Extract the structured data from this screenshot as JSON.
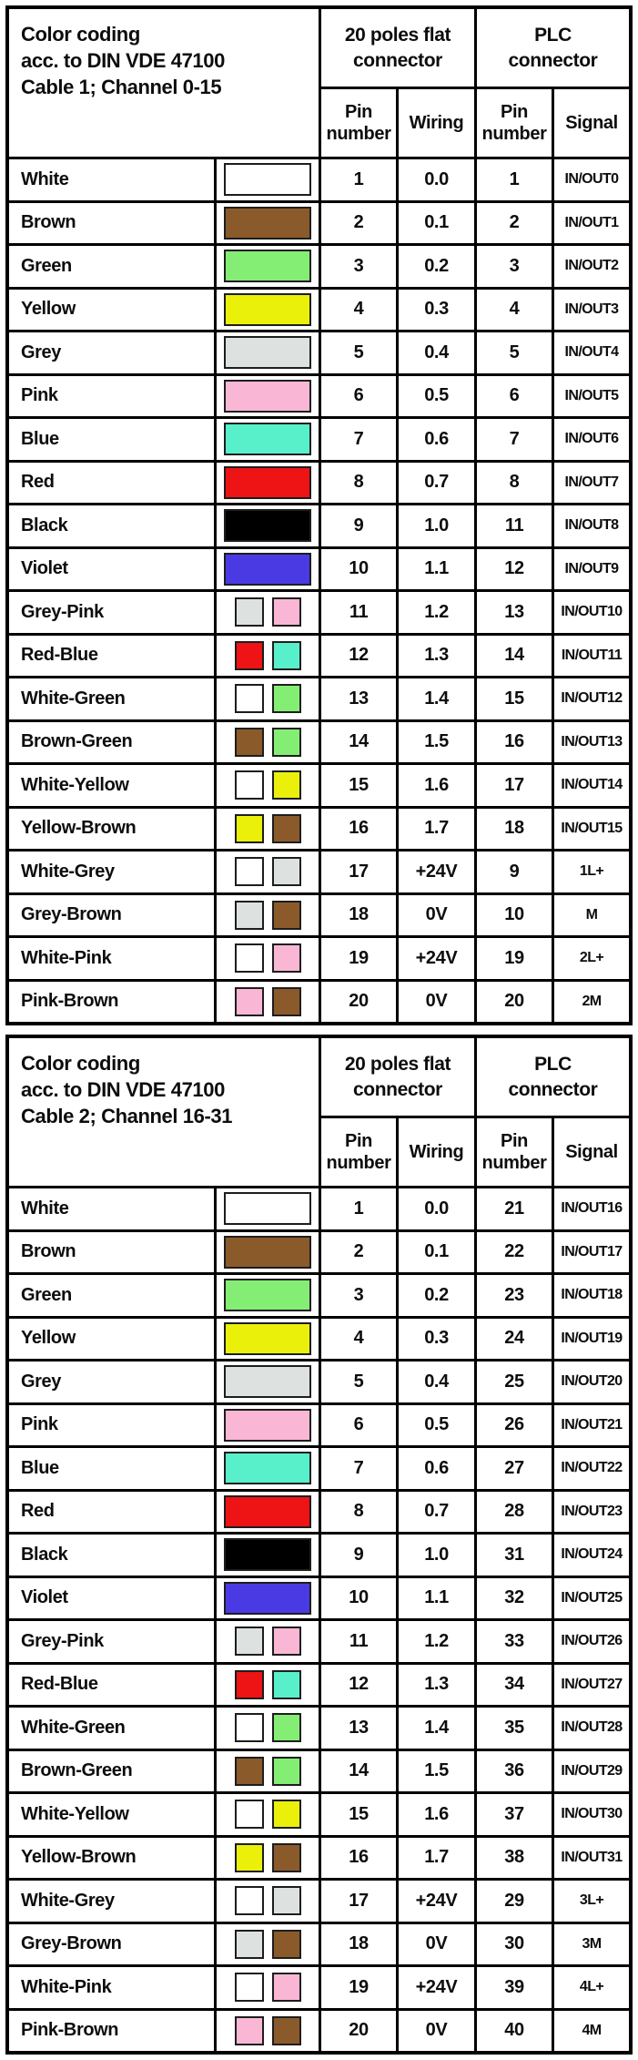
{
  "colors": {
    "white": "#ffffff",
    "brown": "#8b5a2b",
    "green": "#84ee74",
    "yellow": "#eaf00a",
    "grey": "#dde2e0",
    "pink": "#f9b7d5",
    "blue": "#57f0cb",
    "red": "#ee1314",
    "black": "#000000",
    "violet": "#4a3ae3"
  },
  "tables": [
    {
      "title_lines": [
        "Color coding",
        "acc. to DIN VDE 47100",
        "Cable 1; Channel 0-15"
      ],
      "group_headers": [
        "20 poles flat\nconnector",
        "PLC\nconnector"
      ],
      "col_headers": [
        "Pin\nnumber",
        "Wiring",
        "Pin\nnumber",
        "Signal"
      ],
      "rows": [
        {
          "name": "White",
          "swatches": [
            "white"
          ],
          "pin": "1",
          "wiring": "0.0",
          "plc_pin": "1",
          "signal": "IN/OUT0"
        },
        {
          "name": "Brown",
          "swatches": [
            "brown"
          ],
          "pin": "2",
          "wiring": "0.1",
          "plc_pin": "2",
          "signal": "IN/OUT1"
        },
        {
          "name": "Green",
          "swatches": [
            "green"
          ],
          "pin": "3",
          "wiring": "0.2",
          "plc_pin": "3",
          "signal": "IN/OUT2"
        },
        {
          "name": "Yellow",
          "swatches": [
            "yellow"
          ],
          "pin": "4",
          "wiring": "0.3",
          "plc_pin": "4",
          "signal": "IN/OUT3"
        },
        {
          "name": "Grey",
          "swatches": [
            "grey"
          ],
          "pin": "5",
          "wiring": "0.4",
          "plc_pin": "5",
          "signal": "IN/OUT4"
        },
        {
          "name": "Pink",
          "swatches": [
            "pink"
          ],
          "pin": "6",
          "wiring": "0.5",
          "plc_pin": "6",
          "signal": "IN/OUT5"
        },
        {
          "name": "Blue",
          "swatches": [
            "blue"
          ],
          "pin": "7",
          "wiring": "0.6",
          "plc_pin": "7",
          "signal": "IN/OUT6"
        },
        {
          "name": "Red",
          "swatches": [
            "red"
          ],
          "pin": "8",
          "wiring": "0.7",
          "plc_pin": "8",
          "signal": "IN/OUT7"
        },
        {
          "name": "Black",
          "swatches": [
            "black"
          ],
          "pin": "9",
          "wiring": "1.0",
          "plc_pin": "11",
          "signal": "IN/OUT8"
        },
        {
          "name": "Violet",
          "swatches": [
            "violet"
          ],
          "pin": "10",
          "wiring": "1.1",
          "plc_pin": "12",
          "signal": "IN/OUT9"
        },
        {
          "name": "Grey-Pink",
          "swatches": [
            "grey",
            "pink"
          ],
          "pin": "11",
          "wiring": "1.2",
          "plc_pin": "13",
          "signal": "IN/OUT10"
        },
        {
          "name": "Red-Blue",
          "swatches": [
            "red",
            "blue"
          ],
          "pin": "12",
          "wiring": "1.3",
          "plc_pin": "14",
          "signal": "IN/OUT11"
        },
        {
          "name": "White-Green",
          "swatches": [
            "white",
            "green"
          ],
          "pin": "13",
          "wiring": "1.4",
          "plc_pin": "15",
          "signal": "IN/OUT12"
        },
        {
          "name": "Brown-Green",
          "swatches": [
            "brown",
            "green"
          ],
          "pin": "14",
          "wiring": "1.5",
          "plc_pin": "16",
          "signal": "IN/OUT13"
        },
        {
          "name": "White-Yellow",
          "swatches": [
            "white",
            "yellow"
          ],
          "pin": "15",
          "wiring": "1.6",
          "plc_pin": "17",
          "signal": "IN/OUT14"
        },
        {
          "name": "Yellow-Brown",
          "swatches": [
            "yellow",
            "brown"
          ],
          "pin": "16",
          "wiring": "1.7",
          "plc_pin": "18",
          "signal": "IN/OUT15"
        },
        {
          "name": "White-Grey",
          "swatches": [
            "white",
            "grey"
          ],
          "pin": "17",
          "wiring": "+24V",
          "plc_pin": "9",
          "signal": "1L+"
        },
        {
          "name": "Grey-Brown",
          "swatches": [
            "grey",
            "brown"
          ],
          "pin": "18",
          "wiring": "0V",
          "plc_pin": "10",
          "signal": "M"
        },
        {
          "name": "White-Pink",
          "swatches": [
            "white",
            "pink"
          ],
          "pin": "19",
          "wiring": "+24V",
          "plc_pin": "19",
          "signal": "2L+"
        },
        {
          "name": "Pink-Brown",
          "swatches": [
            "pink",
            "brown"
          ],
          "pin": "20",
          "wiring": "0V",
          "plc_pin": "20",
          "signal": "2M"
        }
      ]
    },
    {
      "title_lines": [
        "Color coding",
        "acc. to DIN VDE 47100",
        "Cable 2; Channel 16-31"
      ],
      "group_headers": [
        "20 poles flat\nconnector",
        "PLC\nconnector"
      ],
      "col_headers": [
        "Pin\nnumber",
        "Wiring",
        "Pin\nnumber",
        "Signal"
      ],
      "rows": [
        {
          "name": "White",
          "swatches": [
            "white"
          ],
          "pin": "1",
          "wiring": "0.0",
          "plc_pin": "21",
          "signal": "IN/OUT16"
        },
        {
          "name": "Brown",
          "swatches": [
            "brown"
          ],
          "pin": "2",
          "wiring": "0.1",
          "plc_pin": "22",
          "signal": "IN/OUT17"
        },
        {
          "name": "Green",
          "swatches": [
            "green"
          ],
          "pin": "3",
          "wiring": "0.2",
          "plc_pin": "23",
          "signal": "IN/OUT18"
        },
        {
          "name": "Yellow",
          "swatches": [
            "yellow"
          ],
          "pin": "4",
          "wiring": "0.3",
          "plc_pin": "24",
          "signal": "IN/OUT19"
        },
        {
          "name": "Grey",
          "swatches": [
            "grey"
          ],
          "pin": "5",
          "wiring": "0.4",
          "plc_pin": "25",
          "signal": "IN/OUT20"
        },
        {
          "name": "Pink",
          "swatches": [
            "pink"
          ],
          "pin": "6",
          "wiring": "0.5",
          "plc_pin": "26",
          "signal": "IN/OUT21"
        },
        {
          "name": "Blue",
          "swatches": [
            "blue"
          ],
          "pin": "7",
          "wiring": "0.6",
          "plc_pin": "27",
          "signal": "IN/OUT22"
        },
        {
          "name": "Red",
          "swatches": [
            "red"
          ],
          "pin": "8",
          "wiring": "0.7",
          "plc_pin": "28",
          "signal": "IN/OUT23"
        },
        {
          "name": "Black",
          "swatches": [
            "black"
          ],
          "pin": "9",
          "wiring": "1.0",
          "plc_pin": "31",
          "signal": "IN/OUT24"
        },
        {
          "name": "Violet",
          "swatches": [
            "violet"
          ],
          "pin": "10",
          "wiring": "1.1",
          "plc_pin": "32",
          "signal": "IN/OUT25"
        },
        {
          "name": "Grey-Pink",
          "swatches": [
            "grey",
            "pink"
          ],
          "pin": "11",
          "wiring": "1.2",
          "plc_pin": "33",
          "signal": "IN/OUT26"
        },
        {
          "name": "Red-Blue",
          "swatches": [
            "red",
            "blue"
          ],
          "pin": "12",
          "wiring": "1.3",
          "plc_pin": "34",
          "signal": "IN/OUT27"
        },
        {
          "name": "White-Green",
          "swatches": [
            "white",
            "green"
          ],
          "pin": "13",
          "wiring": "1.4",
          "plc_pin": "35",
          "signal": "IN/OUT28"
        },
        {
          "name": "Brown-Green",
          "swatches": [
            "brown",
            "green"
          ],
          "pin": "14",
          "wiring": "1.5",
          "plc_pin": "36",
          "signal": "IN/OUT29"
        },
        {
          "name": "White-Yellow",
          "swatches": [
            "white",
            "yellow"
          ],
          "pin": "15",
          "wiring": "1.6",
          "plc_pin": "37",
          "signal": "IN/OUT30"
        },
        {
          "name": "Yellow-Brown",
          "swatches": [
            "yellow",
            "brown"
          ],
          "pin": "16",
          "wiring": "1.7",
          "plc_pin": "38",
          "signal": "IN/OUT31"
        },
        {
          "name": "White-Grey",
          "swatches": [
            "white",
            "grey"
          ],
          "pin": "17",
          "wiring": "+24V",
          "plc_pin": "29",
          "signal": "3L+"
        },
        {
          "name": "Grey-Brown",
          "swatches": [
            "grey",
            "brown"
          ],
          "pin": "18",
          "wiring": "0V",
          "plc_pin": "30",
          "signal": "3M"
        },
        {
          "name": "White-Pink",
          "swatches": [
            "white",
            "pink"
          ],
          "pin": "19",
          "wiring": "+24V",
          "plc_pin": "39",
          "signal": "4L+"
        },
        {
          "name": "Pink-Brown",
          "swatches": [
            "pink",
            "brown"
          ],
          "pin": "20",
          "wiring": "0V",
          "plc_pin": "40",
          "signal": "4M"
        }
      ]
    }
  ]
}
